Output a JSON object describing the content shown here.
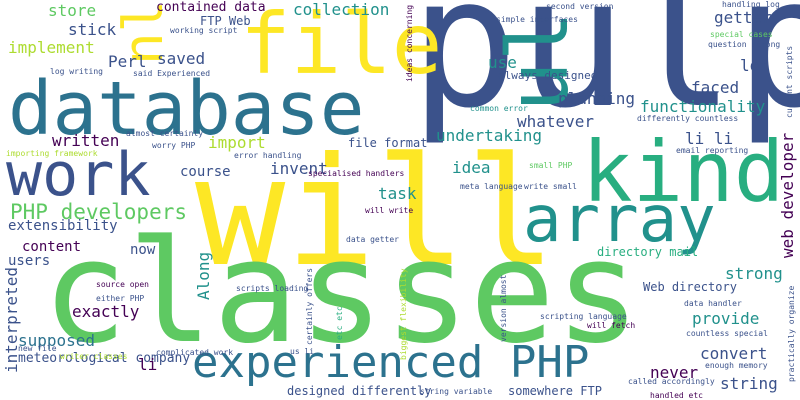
{
  "cloud": {
    "background": "#ffffff",
    "palette": [
      "#3b528b",
      "#2c728e",
      "#21918c",
      "#28ae80",
      "#5ec962",
      "#addc30",
      "#fde725",
      "#440154",
      "#472c7a"
    ],
    "words": {
      "pulp": "pulp",
      "will": "will",
      "classes": "classes",
      "database": "database",
      "kind": "kind",
      "file": "file",
      "array": "array",
      "work": "work",
      "experienced_php": "experienced PHP",
      "ul": "ul",
      "php_developers": "PHP developers",
      "collection": "collection",
      "contained_data": "contained data",
      "store": "store",
      "implement": "implement",
      "stick": "stick",
      "saved": "saved",
      "perl": "Perl",
      "written": "written",
      "import": "import",
      "invent": "invent",
      "course": "course",
      "extensibility": "extensibility",
      "content": "content",
      "now": "now",
      "users": "users",
      "exactly": "exactly",
      "supposed": "supposed",
      "interpreted": "interpreted",
      "along": "Along",
      "meteorological_company": "meteorological company",
      "li": "li",
      "li_li": "li li",
      "functionality": "functionality",
      "web_developer": "web developer",
      "undertaking": "undertaking",
      "idea": "idea",
      "task": "task",
      "whatever": "whatever",
      "planning": "planning",
      "lot": "lot",
      "faced": "faced",
      "getter": "getter",
      "use": "use",
      "always_designed": "always designed",
      "strong": "strong",
      "provide": "provide",
      "convert": "convert",
      "string": "string",
      "never": "never",
      "web_directory": "Web directory",
      "designed_differently": "designed differently",
      "somewhere_ftp": "somewhere FTP",
      "file_format": "file format",
      "directory_mail": "directory mail",
      "ftp_web": "FTP Web",
      "working_script": "working script",
      "log_writing": "log writing",
      "said_experienced": "said Experienced",
      "almost_certainly": "almost certainly",
      "worry_php": "worry PHP",
      "importing_framework": "importing framework",
      "error_handling": "error handling",
      "specialised_handlers": "specialised handlers",
      "meta_language": "meta language",
      "will_write": "will write",
      "data_getter": "data getter",
      "scripts_loading": "scripts loading",
      "source_open": "source open",
      "either_php": "either PHP",
      "new_file": "new file",
      "writer_classes": "writer classes",
      "complicated_work": "complicated work",
      "us_li": "us li",
      "string_variable": "string variable",
      "etc_etc": "etc etc",
      "certainly_offers": "certainly offers",
      "biggest_flexibility": "biggest flexibility",
      "version_almost": "version almost",
      "scripting_language": "scripting language",
      "will_fetch": "will fetch",
      "data_handler": "data handler",
      "countless_special": "countless special",
      "enough_memory": "enough memory",
      "called_accordingly": "called accordingly",
      "handled_etc": "handled etc",
      "practically_organize": "practically organize",
      "common_error": "common error",
      "differently_countless": "differently countless",
      "email_reporting": "email reporting",
      "small_php": "small PHP",
      "write_small": "write small",
      "second_version": "second version",
      "simple_interfaces": "simple interfaces",
      "ideas_concerning": "ideas concerning",
      "handling_log": "handling log",
      "special_cases": "special cases",
      "question_strong": "question strong",
      "current_scripts": "current scripts",
      "nl": "nl"
    }
  }
}
